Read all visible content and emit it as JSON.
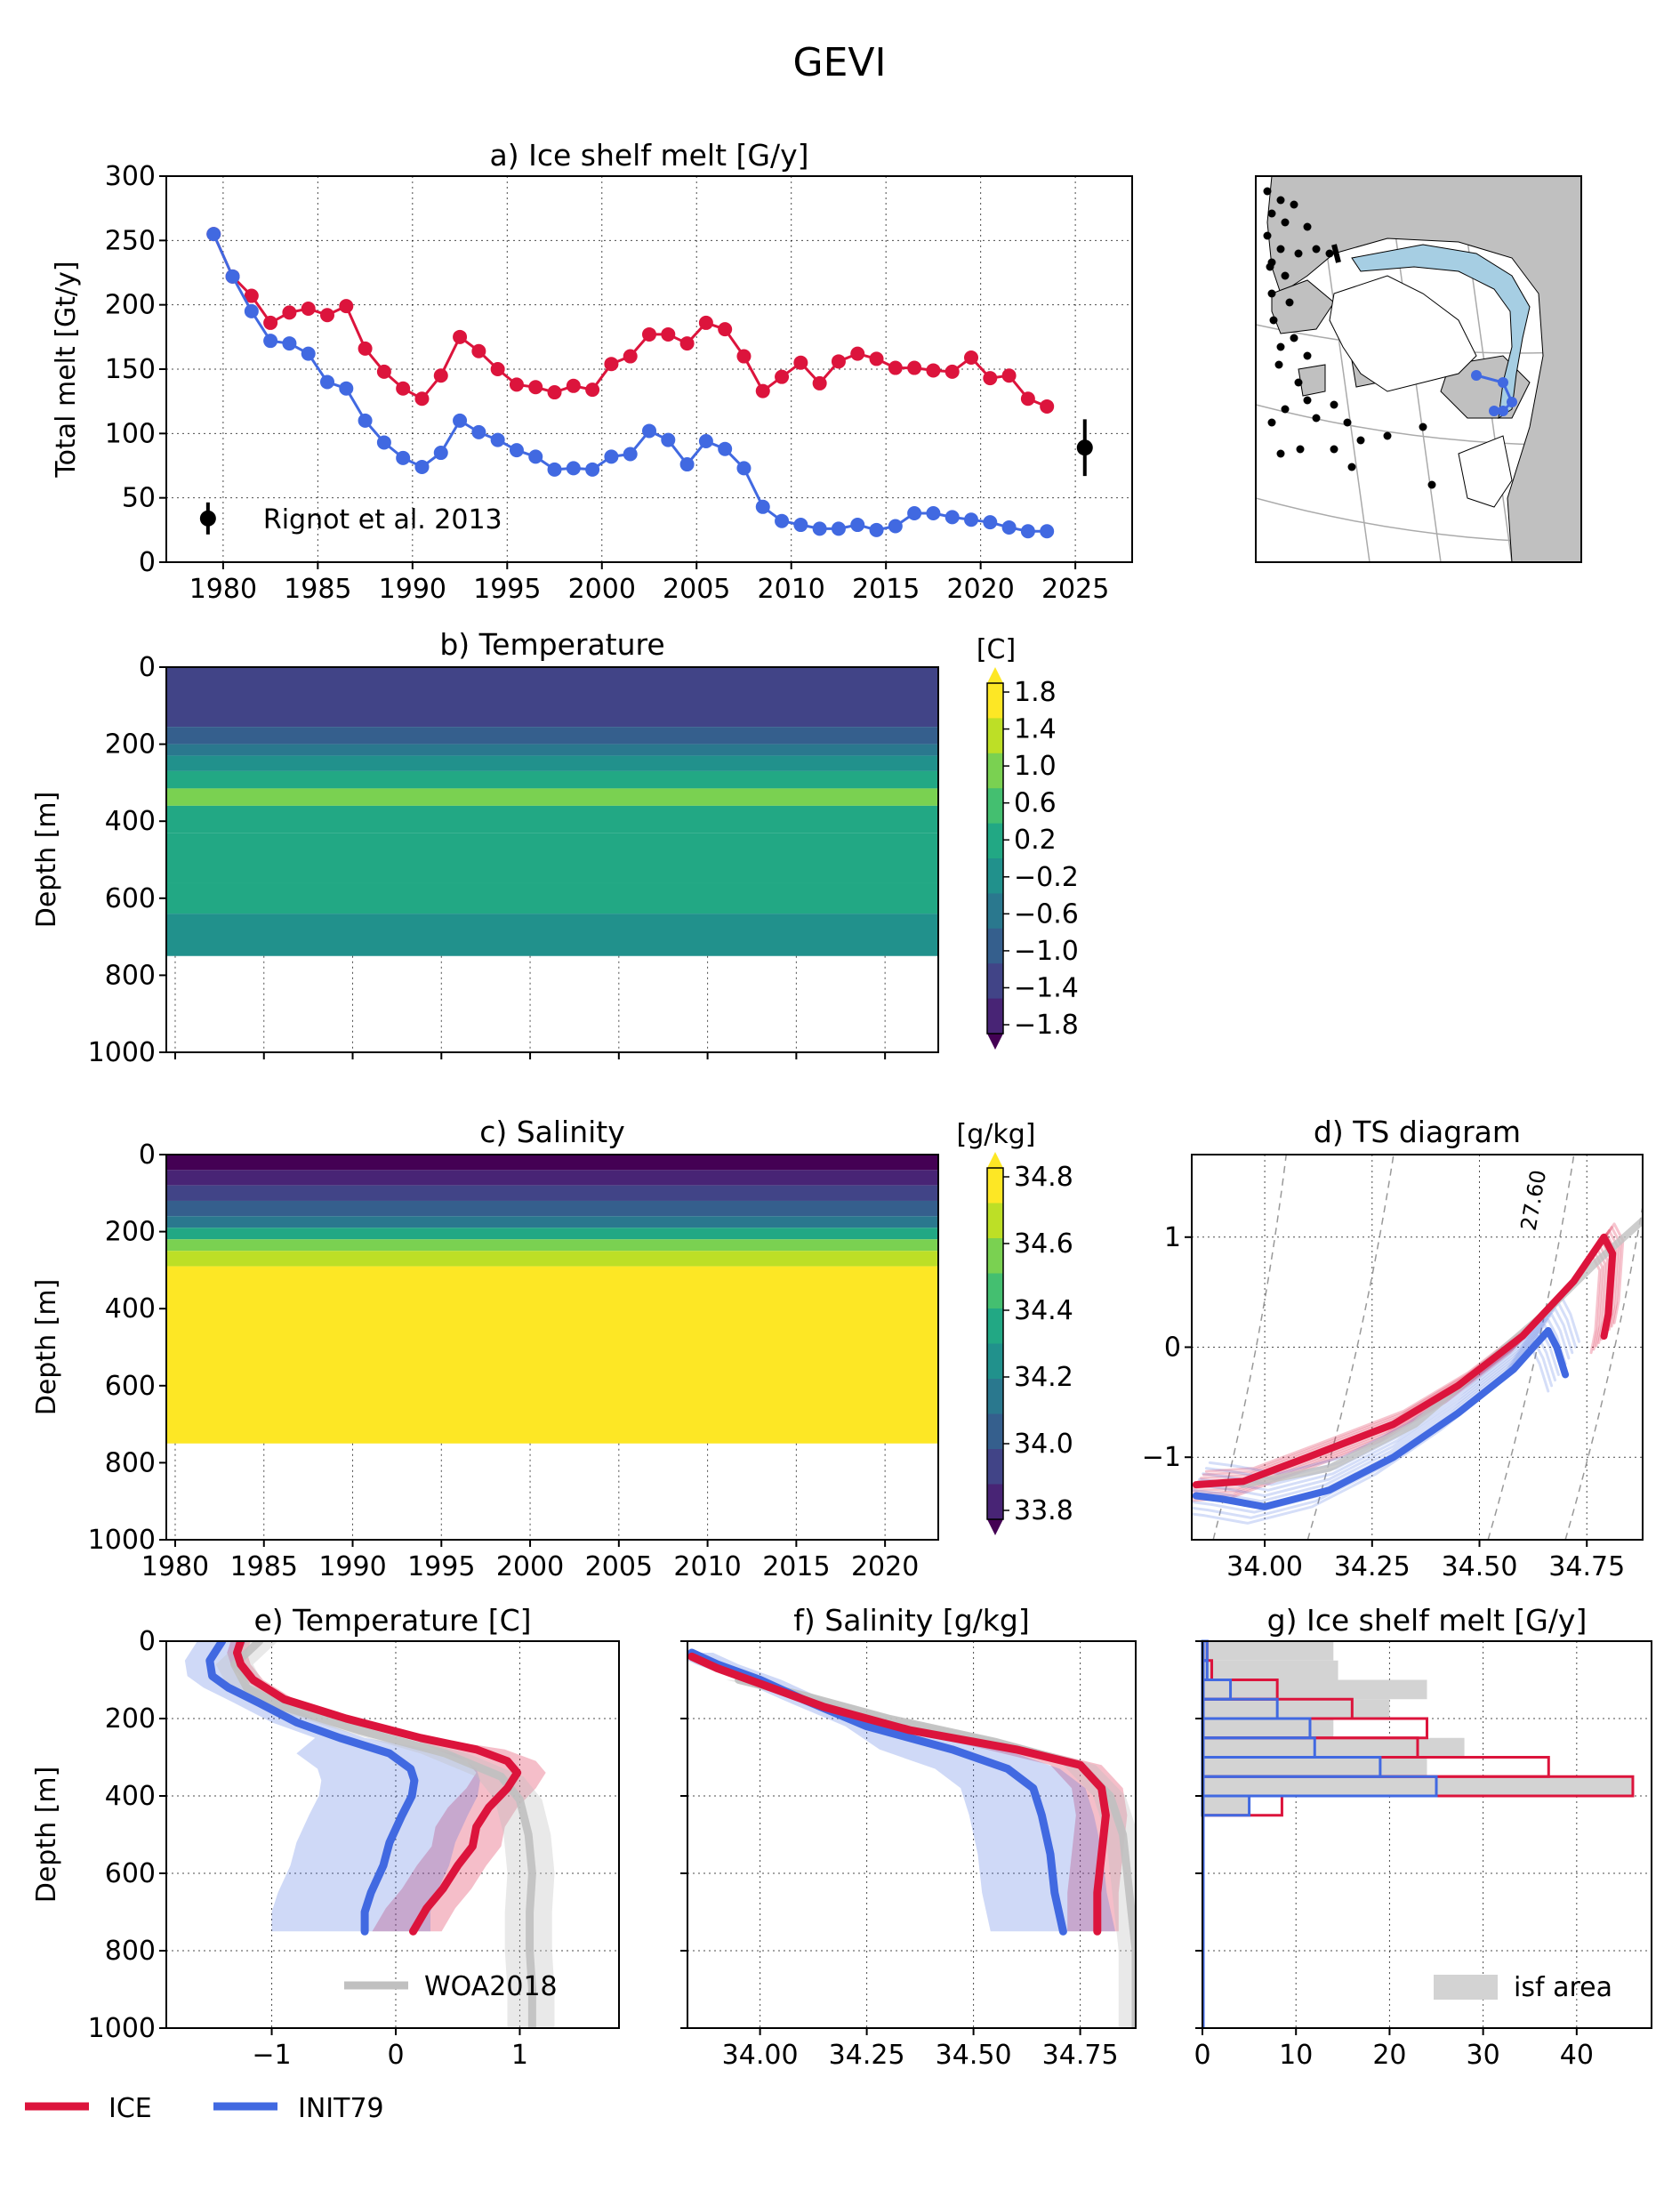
{
  "figure": {
    "title": "GEVI"
  },
  "colors": {
    "ice": "#dc143c",
    "init79": "#4169e1",
    "woa": "#c0c0c0",
    "isf": "#d3d3d3",
    "land": "#c0c0c0",
    "shelf": "#a6cee3",
    "viridis": [
      "#440154",
      "#482475",
      "#414487",
      "#355f8d",
      "#2a788e",
      "#21918c",
      "#22a884",
      "#44bf70",
      "#7ad151",
      "#bddf26",
      "#fde725"
    ]
  },
  "legend": {
    "ice": "ICE",
    "init79": "INIT79"
  },
  "chart_data": [
    {
      "id": "a",
      "type": "line",
      "title": "a) Ice shelf melt [G/y]",
      "ylabel": "Total melt [Gt/y]",
      "xlim": [
        1977,
        2028
      ],
      "ylim": [
        0,
        300
      ],
      "xticks": [
        "1980",
        "1985",
        "1990",
        "1995",
        "2000",
        "2005",
        "2010",
        "2015",
        "2020",
        "2025"
      ],
      "yticks": [
        "0",
        "50",
        "100",
        "150",
        "200",
        "250",
        "300"
      ],
      "grid": true,
      "x": [
        1979.5,
        1980.5,
        1981.5,
        1982.5,
        1983.5,
        1984.5,
        1985.5,
        1986.5,
        1987.5,
        1988.5,
        1989.5,
        1990.5,
        1991.5,
        1992.5,
        1993.5,
        1994.5,
        1995.5,
        1996.5,
        1997.5,
        1998.5,
        1999.5,
        2000.5,
        2001.5,
        2002.5,
        2003.5,
        2004.5,
        2005.5,
        2006.5,
        2007.5,
        2008.5,
        2009.5,
        2010.5,
        2011.5,
        2012.5,
        2013.5,
        2014.5,
        2015.5,
        2016.5,
        2017.5,
        2018.5,
        2019.5,
        2020.5,
        2021.5,
        2022.5,
        2023.5
      ],
      "series": [
        {
          "name": "ICE",
          "values": [
            255,
            222,
            207,
            186,
            194,
            197,
            192,
            199,
            166,
            148,
            135,
            127,
            145,
            175,
            164,
            150,
            138,
            136,
            132,
            137,
            134,
            154,
            160,
            177,
            177,
            170,
            186,
            181,
            160,
            133,
            144,
            155,
            139,
            156,
            162,
            158,
            151,
            151,
            149,
            148,
            159,
            143,
            145,
            127,
            121
          ]
        },
        {
          "name": "INIT79",
          "values": [
            255,
            222,
            195,
            172,
            170,
            162,
            140,
            135,
            110,
            93,
            81,
            74,
            85,
            110,
            101,
            95,
            87,
            82,
            72,
            73,
            72,
            82,
            84,
            102,
            95,
            76,
            94,
            88,
            73,
            43,
            32,
            29,
            26,
            26,
            29,
            25,
            28,
            38,
            38,
            35,
            33,
            31,
            27,
            24,
            24
          ]
        }
      ],
      "obs": {
        "label": "Rignot et al. 2013",
        "x": 2025.5,
        "y": 89,
        "err": 22
      }
    },
    {
      "id": "b",
      "type": "heatmap",
      "title": "b) Temperature",
      "ylabel": "Depth [m]",
      "colorbar_label": "[C]",
      "colorbar_ticks": [
        "1.8",
        "1.4",
        "1.0",
        "0.6",
        "0.2",
        "−0.2",
        "−0.6",
        "−1.0",
        "−1.4",
        "−1.8"
      ],
      "xlim": [
        1979.5,
        2023
      ],
      "ylim": [
        1000,
        0
      ],
      "yticks": [
        "0",
        "200",
        "400",
        "600",
        "800",
        "1000"
      ],
      "data_depth_max": 750,
      "bands": [
        {
          "from": 0,
          "to": 155,
          "value": -1.2
        },
        {
          "from": 155,
          "to": 200,
          "value": -0.8
        },
        {
          "from": 200,
          "to": 230,
          "value": -0.4
        },
        {
          "from": 230,
          "to": 270,
          "value": 0.0
        },
        {
          "from": 270,
          "to": 315,
          "value": 0.4
        },
        {
          "from": 315,
          "to": 360,
          "value": 0.9
        },
        {
          "from": 360,
          "to": 430,
          "value": 0.4
        },
        {
          "from": 430,
          "to": 560,
          "value": 0.4
        },
        {
          "from": 560,
          "to": 640,
          "value": 0.2
        },
        {
          "from": 640,
          "to": 750,
          "value": 0.0
        }
      ]
    },
    {
      "id": "c",
      "type": "heatmap",
      "title": "c) Salinity",
      "ylabel": "Depth [m]",
      "colorbar_label": "[g/kg]",
      "colorbar_ticks": [
        "34.8",
        "34.6",
        "34.4",
        "34.2",
        "34.0",
        "33.8"
      ],
      "xlim": [
        1979.5,
        2023
      ],
      "ylim": [
        1000,
        0
      ],
      "xticks": [
        "1980",
        "1985",
        "1990",
        "1995",
        "2000",
        "2005",
        "2010",
        "2015",
        "2020"
      ],
      "yticks": [
        "0",
        "200",
        "400",
        "600",
        "800",
        "1000"
      ],
      "data_depth_max": 750,
      "bands": [
        {
          "from": 0,
          "to": 40,
          "value": 33.8
        },
        {
          "from": 40,
          "to": 80,
          "value": 33.9
        },
        {
          "from": 80,
          "to": 120,
          "value": 34.0
        },
        {
          "from": 120,
          "to": 160,
          "value": 34.1
        },
        {
          "from": 160,
          "to": 190,
          "value": 34.2
        },
        {
          "from": 190,
          "to": 220,
          "value": 34.35
        },
        {
          "from": 220,
          "to": 250,
          "value": 34.55
        },
        {
          "from": 250,
          "to": 290,
          "value": 34.7
        },
        {
          "from": 290,
          "to": 750,
          "value": 34.8
        }
      ]
    },
    {
      "id": "d",
      "type": "line",
      "title": "d) TS diagram",
      "xlim": [
        33.83,
        34.88
      ],
      "ylim": [
        -1.75,
        1.75
      ],
      "xticks": [
        "34.00",
        "34.25",
        "34.50",
        "34.75"
      ],
      "yticks": [
        "−1",
        "0",
        "1"
      ],
      "contour_label": "27.60",
      "series": [
        {
          "name": "ICE",
          "points": [
            [
              33.84,
              -1.25
            ],
            [
              33.95,
              -1.22
            ],
            [
              34.1,
              -1.0
            ],
            [
              34.3,
              -0.7
            ],
            [
              34.45,
              -0.35
            ],
            [
              34.6,
              0.1
            ],
            [
              34.72,
              0.6
            ],
            [
              34.79,
              1.0
            ],
            [
              34.81,
              0.85
            ],
            [
              34.8,
              0.3
            ],
            [
              34.79,
              0.1
            ]
          ]
        },
        {
          "name": "INIT79",
          "points": [
            [
              33.84,
              -1.35
            ],
            [
              33.9,
              -1.38
            ],
            [
              34.0,
              -1.45
            ],
            [
              34.15,
              -1.3
            ],
            [
              34.3,
              -1.0
            ],
            [
              34.45,
              -0.6
            ],
            [
              34.58,
              -0.2
            ],
            [
              34.66,
              0.15
            ],
            [
              34.68,
              0.0
            ],
            [
              34.7,
              -0.25
            ]
          ]
        },
        {
          "name": "WOA2018",
          "points": [
            [
              33.95,
              -1.25
            ],
            [
              34.15,
              -1.1
            ],
            [
              34.35,
              -0.7
            ],
            [
              34.5,
              -0.2
            ],
            [
              34.65,
              0.3
            ],
            [
              34.78,
              0.8
            ],
            [
              34.88,
              1.15
            ]
          ]
        }
      ]
    },
    {
      "id": "e",
      "type": "line",
      "title": "e) Temperature [C]",
      "ylabel": "Depth [m]",
      "xlim": [
        -1.85,
        1.8
      ],
      "ylim": [
        1000,
        0
      ],
      "xticks": [
        "−1",
        "0",
        "1"
      ],
      "yticks": [
        "0",
        "200",
        "400",
        "600",
        "800",
        "1000"
      ],
      "legend_label": "WOA2018",
      "series": [
        {
          "name": "ICE",
          "points": [
            [
              -1.25,
              0
            ],
            [
              -1.28,
              30
            ],
            [
              -1.25,
              60
            ],
            [
              -1.15,
              100
            ],
            [
              -0.9,
              150
            ],
            [
              -0.4,
              200
            ],
            [
              0.2,
              250
            ],
            [
              0.65,
              280
            ],
            [
              0.9,
              310
            ],
            [
              0.98,
              340
            ],
            [
              0.9,
              380
            ],
            [
              0.75,
              430
            ],
            [
              0.65,
              480
            ],
            [
              0.62,
              530
            ],
            [
              0.5,
              580
            ],
            [
              0.38,
              640
            ],
            [
              0.25,
              690
            ],
            [
              0.14,
              750
            ]
          ]
        },
        {
          "name": "INIT79",
          "points": [
            [
              -1.4,
              0
            ],
            [
              -1.5,
              50
            ],
            [
              -1.48,
              90
            ],
            [
              -1.35,
              120
            ],
            [
              -1.1,
              160
            ],
            [
              -0.8,
              210
            ],
            [
              -0.45,
              250
            ],
            [
              -0.05,
              290
            ],
            [
              0.12,
              330
            ],
            [
              0.15,
              360
            ],
            [
              0.13,
              400
            ],
            [
              0.05,
              450
            ],
            [
              -0.05,
              520
            ],
            [
              -0.1,
              580
            ],
            [
              -0.2,
              650
            ],
            [
              -0.25,
              700
            ],
            [
              -0.25,
              750
            ]
          ]
        },
        {
          "name": "WOA2018",
          "points": [
            [
              -1.1,
              0
            ],
            [
              -1.3,
              60
            ],
            [
              -1.2,
              120
            ],
            [
              -0.9,
              170
            ],
            [
              -0.3,
              230
            ],
            [
              0.4,
              290
            ],
            [
              0.85,
              350
            ],
            [
              1.0,
              410
            ],
            [
              1.07,
              500
            ],
            [
              1.1,
              600
            ],
            [
              1.08,
              700
            ],
            [
              1.08,
              800
            ],
            [
              1.1,
              900
            ],
            [
              1.1,
              1000
            ]
          ]
        }
      ]
    },
    {
      "id": "f",
      "type": "line",
      "title": "f) Salinity [g/kg]",
      "xlim": [
        33.83,
        34.88
      ],
      "ylim": [
        1000,
        0
      ],
      "xticks": [
        "34.00",
        "34.25",
        "34.50",
        "34.75"
      ],
      "series": [
        {
          "name": "ICE",
          "points": [
            [
              33.84,
              40
            ],
            [
              33.9,
              70
            ],
            [
              34.0,
              110
            ],
            [
              34.15,
              170
            ],
            [
              34.35,
              230
            ],
            [
              34.6,
              280
            ],
            [
              34.75,
              320
            ],
            [
              34.8,
              380
            ],
            [
              34.81,
              450
            ],
            [
              34.8,
              550
            ],
            [
              34.79,
              650
            ],
            [
              34.79,
              750
            ]
          ]
        },
        {
          "name": "INIT79",
          "points": [
            [
              33.84,
              30
            ],
            [
              33.9,
              60
            ],
            [
              34.0,
              100
            ],
            [
              34.1,
              150
            ],
            [
              34.25,
              220
            ],
            [
              34.45,
              280
            ],
            [
              34.58,
              330
            ],
            [
              34.64,
              380
            ],
            [
              34.66,
              450
            ],
            [
              34.68,
              550
            ],
            [
              34.69,
              650
            ],
            [
              34.71,
              750
            ]
          ]
        },
        {
          "name": "WOA2018",
          "points": [
            [
              33.95,
              100
            ],
            [
              34.1,
              140
            ],
            [
              34.3,
              200
            ],
            [
              34.55,
              260
            ],
            [
              34.75,
              320
            ],
            [
              34.82,
              400
            ],
            [
              34.85,
              500
            ],
            [
              34.86,
              600
            ],
            [
              34.87,
              700
            ],
            [
              34.88,
              800
            ],
            [
              34.88,
              1000
            ]
          ]
        }
      ]
    },
    {
      "id": "g",
      "type": "bar",
      "title": "g) Ice shelf melt [G/y]",
      "xlim": [
        0,
        48
      ],
      "ylim": [
        1000,
        0
      ],
      "xticks": [
        "0",
        "10",
        "20",
        "30",
        "40"
      ],
      "legend_label": "isf area",
      "bins": [
        0,
        50,
        100,
        150,
        200,
        250,
        300,
        350,
        400,
        450
      ],
      "isf_area": [
        14,
        14.5,
        24,
        20,
        14,
        28,
        24,
        46,
        5
      ],
      "ICE": [
        0.5,
        1,
        8,
        16,
        24,
        23,
        37,
        46,
        8.5
      ],
      "INIT79": [
        0.5,
        0.5,
        3,
        8,
        11.5,
        12,
        19,
        25,
        5
      ]
    }
  ]
}
